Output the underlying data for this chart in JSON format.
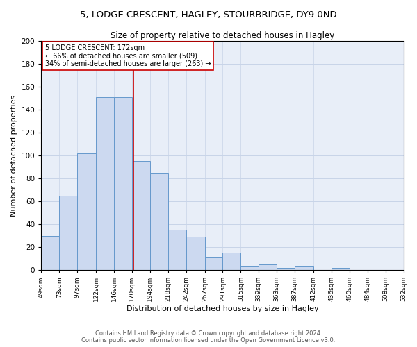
{
  "title": "5, LODGE CRESCENT, HAGLEY, STOURBRIDGE, DY9 0ND",
  "subtitle": "Size of property relative to detached houses in Hagley",
  "xlabel": "Distribution of detached houses by size in Hagley",
  "ylabel": "Number of detached properties",
  "bar_edges": [
    49,
    73,
    97,
    122,
    146,
    170,
    194,
    218,
    242,
    267,
    291,
    315,
    339,
    363,
    387,
    412,
    436,
    460,
    484,
    508,
    532
  ],
  "bar_heights": [
    30,
    65,
    102,
    151,
    151,
    95,
    85,
    35,
    29,
    11,
    15,
    3,
    5,
    2,
    3,
    0,
    2,
    0,
    0,
    0
  ],
  "property_size": 172,
  "vline_color": "#cc0000",
  "bar_facecolor": "#ccd9f0",
  "bar_edgecolor": "#6699cc",
  "annotation_text": "5 LODGE CRESCENT: 172sqm\n← 66% of detached houses are smaller (509)\n34% of semi-detached houses are larger (263) →",
  "annotation_box_color": "#ffffff",
  "annotation_box_edgecolor": "#cc0000",
  "grid_color": "#c8d4e8",
  "background_color": "#e8eef8",
  "footer": "Contains HM Land Registry data © Crown copyright and database right 2024.\nContains public sector information licensed under the Open Government Licence v3.0.",
  "ylim": [
    0,
    200
  ],
  "yticks": [
    0,
    20,
    40,
    60,
    80,
    100,
    120,
    140,
    160,
    180,
    200
  ],
  "title_fontsize": 9.5,
  "subtitle_fontsize": 8.5,
  "xlabel_fontsize": 8,
  "ylabel_fontsize": 8,
  "xtick_fontsize": 6.5,
  "ytick_fontsize": 7.5,
  "annotation_fontsize": 7,
  "footer_fontsize": 6
}
